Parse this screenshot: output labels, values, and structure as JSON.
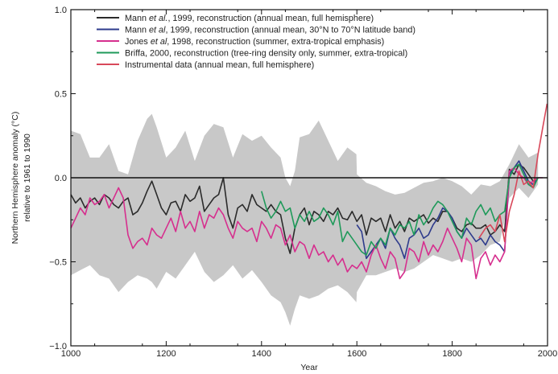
{
  "chart_data": {
    "type": "line",
    "xlabel": "Year",
    "ylabel_line1": "Northern Hemisphere anomaly (°C)",
    "ylabel_line2": "relative to 1961 to 1990",
    "xlim": [
      1000,
      2000
    ],
    "ylim": [
      -1.0,
      1.0
    ],
    "x_ticks": [
      1000,
      1200,
      1400,
      1600,
      1800,
      2000
    ],
    "y_ticks": [
      -1.0,
      -0.5,
      0.0,
      0.5,
      1.0
    ],
    "y_tick_labels": [
      "−1.0",
      "−0.5",
      "0.0",
      "0.5",
      "1.0"
    ],
    "x_tick_labels": [
      "1000",
      "1200",
      "1400",
      "1600",
      "1800",
      "2000"
    ],
    "zero_line": 0.0,
    "legend_position": "top",
    "legend": [
      {
        "pre": "Mann ",
        "it": "et al.",
        "post": ", 1999, reconstruction (annual mean, full hemisphere)",
        "color": "#2b2b2b"
      },
      {
        "pre": "Mann ",
        "it": "et al",
        "post": ", 1999, reconstruction (annual mean, 30°N to 70°N latitude band)",
        "color": "#2e3b8c"
      },
      {
        "pre": "Jones ",
        "it": "et al",
        "post": ", 1998, reconstruction (summer, extra-tropical emphasis)",
        "color": "#d62f8e"
      },
      {
        "pre": "Briffa, 2000, reconstruction (tree-ring density only, summer, extra-tropical)",
        "it": "",
        "post": "",
        "color": "#1f9a5a"
      },
      {
        "pre": "Instrumental data (annual mean, full hemisphere)",
        "it": "",
        "post": "",
        "color": "#d8485a"
      }
    ],
    "uncertainty_band": {
      "color": "#c8c8c8",
      "x": [
        1000,
        1020,
        1040,
        1060,
        1080,
        1100,
        1120,
        1140,
        1160,
        1170,
        1180,
        1200,
        1220,
        1240,
        1260,
        1280,
        1300,
        1320,
        1340,
        1360,
        1380,
        1400,
        1420,
        1440,
        1450,
        1460,
        1470,
        1480,
        1500,
        1520,
        1540,
        1560,
        1580,
        1599,
        1600,
        1620,
        1640,
        1660,
        1680,
        1700,
        1720,
        1740,
        1760,
        1780,
        1800,
        1820,
        1840,
        1860,
        1880,
        1900,
        1920,
        1940,
        1960,
        1980
      ],
      "upper": [
        0.28,
        0.26,
        0.12,
        0.12,
        0.2,
        0.04,
        0.02,
        0.22,
        0.35,
        0.38,
        0.3,
        0.12,
        0.18,
        0.28,
        0.1,
        0.25,
        0.32,
        0.3,
        0.12,
        0.26,
        0.22,
        0.25,
        0.18,
        0.12,
        0.0,
        -0.05,
        0.04,
        0.24,
        0.26,
        0.34,
        0.22,
        0.1,
        0.18,
        0.14,
        0.02,
        -0.03,
        -0.05,
        -0.08,
        -0.1,
        -0.09,
        -0.06,
        -0.03,
        -0.02,
        0.0,
        -0.02,
        -0.05,
        -0.1,
        -0.04,
        -0.05,
        -0.02,
        0.08,
        0.2,
        0.12,
        0.15
      ],
      "lower": [
        -0.58,
        -0.55,
        -0.52,
        -0.58,
        -0.6,
        -0.68,
        -0.62,
        -0.58,
        -0.6,
        -0.62,
        -0.66,
        -0.56,
        -0.6,
        -0.52,
        -0.44,
        -0.56,
        -0.62,
        -0.58,
        -0.52,
        -0.6,
        -0.55,
        -0.62,
        -0.7,
        -0.74,
        -0.8,
        -0.88,
        -0.78,
        -0.7,
        -0.72,
        -0.7,
        -0.66,
        -0.64,
        -0.68,
        -0.74,
        -0.68,
        -0.58,
        -0.58,
        -0.56,
        -0.54,
        -0.56,
        -0.54,
        -0.5,
        -0.46,
        -0.48,
        -0.5,
        -0.48,
        -0.5,
        -0.46,
        -0.4,
        -0.38,
        -0.12,
        -0.06,
        -0.12,
        -0.04
      ]
    },
    "series": [
      {
        "name": "Mann et al., 1999 (full hemisphere)",
        "color": "#2b2b2b",
        "x": [
          1000,
          1010,
          1020,
          1030,
          1040,
          1050,
          1060,
          1070,
          1080,
          1090,
          1100,
          1110,
          1120,
          1130,
          1140,
          1150,
          1160,
          1170,
          1180,
          1190,
          1200,
          1210,
          1220,
          1230,
          1240,
          1250,
          1260,
          1270,
          1280,
          1290,
          1300,
          1310,
          1320,
          1330,
          1340,
          1350,
          1360,
          1370,
          1380,
          1390,
          1400,
          1410,
          1420,
          1430,
          1440,
          1450,
          1460,
          1470,
          1480,
          1490,
          1500,
          1510,
          1520,
          1530,
          1540,
          1550,
          1560,
          1570,
          1580,
          1590,
          1600,
          1610,
          1620,
          1630,
          1640,
          1650,
          1660,
          1670,
          1680,
          1690,
          1700,
          1710,
          1720,
          1730,
          1740,
          1750,
          1760,
          1770,
          1780,
          1790,
          1800,
          1810,
          1820,
          1830,
          1840,
          1850,
          1860,
          1870,
          1880,
          1890,
          1900,
          1910,
          1920,
          1930,
          1940,
          1950,
          1960,
          1970,
          1980
        ],
        "y": [
          -0.1,
          -0.15,
          -0.12,
          -0.18,
          -0.14,
          -0.12,
          -0.16,
          -0.1,
          -0.12,
          -0.16,
          -0.18,
          -0.14,
          -0.12,
          -0.22,
          -0.2,
          -0.15,
          -0.08,
          -0.02,
          -0.1,
          -0.18,
          -0.22,
          -0.15,
          -0.14,
          -0.2,
          -0.1,
          -0.14,
          -0.12,
          -0.05,
          -0.2,
          -0.16,
          -0.12,
          -0.1,
          0.0,
          -0.22,
          -0.3,
          -0.18,
          -0.16,
          -0.2,
          -0.1,
          -0.16,
          -0.18,
          -0.2,
          -0.16,
          -0.2,
          -0.22,
          -0.36,
          -0.45,
          -0.3,
          -0.22,
          -0.18,
          -0.28,
          -0.2,
          -0.22,
          -0.26,
          -0.2,
          -0.22,
          -0.18,
          -0.24,
          -0.25,
          -0.2,
          -0.26,
          -0.22,
          -0.34,
          -0.24,
          -0.26,
          -0.24,
          -0.32,
          -0.22,
          -0.3,
          -0.26,
          -0.32,
          -0.24,
          -0.26,
          -0.24,
          -0.22,
          -0.27,
          -0.24,
          -0.26,
          -0.2,
          -0.2,
          -0.24,
          -0.3,
          -0.32,
          -0.28,
          -0.27,
          -0.3,
          -0.3,
          -0.28,
          -0.34,
          -0.32,
          -0.28,
          -0.32,
          0.05,
          0.02,
          0.08,
          0.06,
          0.02,
          -0.02,
          0.0
        ]
      },
      {
        "name": "Mann et al, 1999 (30°N to 70°N latitude band)",
        "color": "#2e3b8c",
        "x": [
          1600,
          1610,
          1620,
          1630,
          1640,
          1650,
          1660,
          1670,
          1680,
          1690,
          1700,
          1710,
          1720,
          1730,
          1740,
          1750,
          1760,
          1770,
          1780,
          1790,
          1800,
          1810,
          1820,
          1830,
          1840,
          1850,
          1860,
          1870,
          1880,
          1890,
          1900,
          1910,
          1920,
          1930,
          1940,
          1950,
          1960,
          1970,
          1980
        ],
        "y": [
          -0.28,
          -0.32,
          -0.48,
          -0.44,
          -0.4,
          -0.36,
          -0.42,
          -0.3,
          -0.36,
          -0.4,
          -0.48,
          -0.36,
          -0.34,
          -0.3,
          -0.36,
          -0.34,
          -0.28,
          -0.24,
          -0.18,
          -0.2,
          -0.24,
          -0.32,
          -0.36,
          -0.3,
          -0.34,
          -0.38,
          -0.36,
          -0.4,
          -0.34,
          -0.38,
          -0.4,
          -0.44,
          0.02,
          0.06,
          0.1,
          0.04,
          -0.02,
          -0.04,
          0.0
        ]
      },
      {
        "name": "Jones et al, 1998 (summer, extra-tropical emphasis)",
        "color": "#d62f8e",
        "x": [
          1000,
          1010,
          1020,
          1030,
          1040,
          1050,
          1060,
          1070,
          1080,
          1090,
          1100,
          1110,
          1120,
          1130,
          1140,
          1150,
          1160,
          1170,
          1180,
          1190,
          1200,
          1210,
          1220,
          1230,
          1240,
          1250,
          1260,
          1270,
          1280,
          1290,
          1300,
          1310,
          1320,
          1330,
          1340,
          1350,
          1360,
          1370,
          1380,
          1390,
          1400,
          1410,
          1420,
          1430,
          1440,
          1450,
          1460,
          1470,
          1480,
          1490,
          1500,
          1510,
          1520,
          1530,
          1540,
          1550,
          1560,
          1570,
          1580,
          1590,
          1600,
          1610,
          1620,
          1630,
          1640,
          1650,
          1660,
          1670,
          1680,
          1690,
          1700,
          1710,
          1720,
          1730,
          1740,
          1750,
          1760,
          1770,
          1780,
          1790,
          1800,
          1810,
          1820,
          1830,
          1840,
          1850,
          1860,
          1870,
          1880,
          1890,
          1900,
          1910,
          1920,
          1930,
          1940,
          1950,
          1960,
          1970,
          1980,
          1990
        ],
        "y": [
          -0.3,
          -0.24,
          -0.18,
          -0.22,
          -0.12,
          -0.16,
          -0.14,
          -0.1,
          -0.18,
          -0.12,
          -0.06,
          -0.12,
          -0.34,
          -0.42,
          -0.38,
          -0.36,
          -0.4,
          -0.3,
          -0.34,
          -0.36,
          -0.3,
          -0.24,
          -0.32,
          -0.2,
          -0.3,
          -0.26,
          -0.32,
          -0.2,
          -0.3,
          -0.22,
          -0.24,
          -0.18,
          -0.22,
          -0.3,
          -0.36,
          -0.26,
          -0.3,
          -0.32,
          -0.3,
          -0.38,
          -0.26,
          -0.3,
          -0.36,
          -0.28,
          -0.3,
          -0.4,
          -0.34,
          -0.44,
          -0.38,
          -0.4,
          -0.48,
          -0.4,
          -0.46,
          -0.44,
          -0.5,
          -0.46,
          -0.52,
          -0.48,
          -0.56,
          -0.52,
          -0.54,
          -0.5,
          -0.56,
          -0.46,
          -0.4,
          -0.48,
          -0.54,
          -0.44,
          -0.48,
          -0.6,
          -0.56,
          -0.42,
          -0.44,
          -0.5,
          -0.38,
          -0.46,
          -0.4,
          -0.44,
          -0.38,
          -0.3,
          -0.36,
          -0.42,
          -0.5,
          -0.36,
          -0.4,
          -0.6,
          -0.48,
          -0.44,
          -0.52,
          -0.46,
          -0.5,
          -0.44,
          0.04,
          0.06,
          0.02,
          0.0,
          -0.04,
          -0.02,
          0.0,
          0.0
        ]
      },
      {
        "name": "Briffa, 2000 (tree-ring density only)",
        "color": "#1f9a5a",
        "x": [
          1400,
          1410,
          1420,
          1430,
          1440,
          1450,
          1460,
          1470,
          1480,
          1490,
          1500,
          1510,
          1520,
          1530,
          1540,
          1550,
          1560,
          1570,
          1580,
          1590,
          1600,
          1610,
          1620,
          1630,
          1640,
          1650,
          1660,
          1670,
          1680,
          1690,
          1700,
          1710,
          1720,
          1730,
          1740,
          1750,
          1760,
          1770,
          1780,
          1790,
          1800,
          1810,
          1820,
          1830,
          1840,
          1850,
          1860,
          1870,
          1880,
          1890,
          1900,
          1910,
          1920,
          1930,
          1940,
          1950,
          1960,
          1970,
          1980
        ],
        "y": [
          -0.08,
          -0.18,
          -0.24,
          -0.2,
          -0.14,
          -0.2,
          -0.18,
          -0.3,
          -0.22,
          -0.26,
          -0.2,
          -0.26,
          -0.24,
          -0.18,
          -0.22,
          -0.28,
          -0.2,
          -0.38,
          -0.32,
          -0.36,
          -0.4,
          -0.44,
          -0.46,
          -0.38,
          -0.42,
          -0.36,
          -0.4,
          -0.3,
          -0.34,
          -0.28,
          -0.3,
          -0.26,
          -0.34,
          -0.22,
          -0.28,
          -0.24,
          -0.18,
          -0.14,
          -0.16,
          -0.2,
          -0.26,
          -0.32,
          -0.36,
          -0.24,
          -0.28,
          -0.2,
          -0.16,
          -0.22,
          -0.18,
          -0.26,
          -0.22,
          -0.2,
          0.0,
          0.06,
          0.08,
          0.02,
          -0.04,
          -0.06,
          0.0
        ]
      },
      {
        "name": "Instrumental data (annual mean, full hemisphere)",
        "color": "#d8485a",
        "x": [
          1856,
          1870,
          1880,
          1890,
          1900,
          1910,
          1920,
          1930,
          1940,
          1950,
          1960,
          1970,
          1980,
          1990,
          1999
        ],
        "y": [
          -0.36,
          -0.3,
          -0.28,
          -0.32,
          -0.22,
          -0.38,
          -0.2,
          -0.1,
          0.04,
          -0.04,
          -0.02,
          -0.06,
          0.14,
          0.3,
          0.44
        ]
      }
    ]
  }
}
